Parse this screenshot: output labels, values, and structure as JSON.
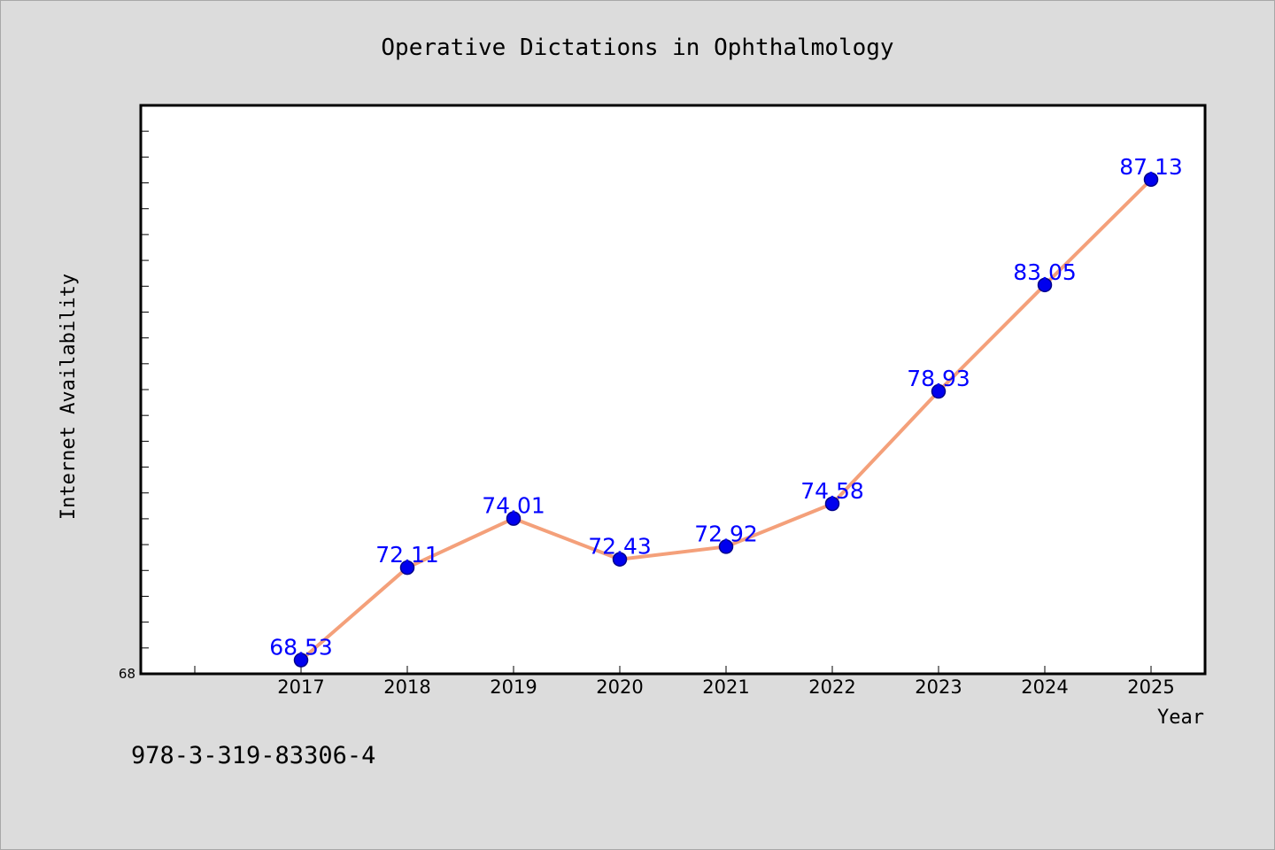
{
  "chart_data": {
    "type": "line",
    "title": "Operative Dictations in Ophthalmology",
    "xlabel": "Year",
    "ylabel": "Internet Availability",
    "categories": [
      "2017",
      "2018",
      "2019",
      "2020",
      "2021",
      "2022",
      "2023",
      "2024",
      "2025"
    ],
    "series": [
      {
        "values": [
          68.53,
          72.11,
          74.01,
          72.43,
          72.92,
          74.58,
          78.93,
          83.05,
          87.13
        ]
      }
    ],
    "data_labels": [
      "68.53",
      "72.11",
      "74.01",
      "72.43",
      "72.92",
      "74.58",
      "78.93",
      "83.05",
      "87.13"
    ],
    "y_tick_label": "68",
    "ylim": [
      68,
      90
    ],
    "grid": false,
    "legend": "none",
    "colors": {
      "line": "#f4a07a",
      "marker": "#0000ee",
      "marker_edge": "#00008b",
      "label": "#0000ff",
      "frame": "#000000"
    }
  },
  "footer_text": "978-3-319-83306-4"
}
